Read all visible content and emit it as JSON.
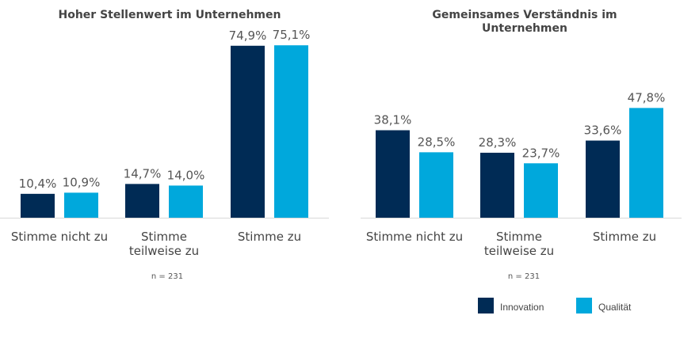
{
  "colors": {
    "innovation": "#002b55",
    "qualitaet": "#00a8dc"
  },
  "legend": {
    "innovation": "Innovation",
    "qualitaet": "Qualität"
  },
  "chart_data": [
    {
      "type": "bar",
      "title": "Hoher Stellenwert im Unternehmen",
      "categories": [
        "Stimme nicht zu",
        "Stimme\nteilweise zu",
        "Stimme zu"
      ],
      "series": [
        {
          "name": "Innovation",
          "values": [
            10.4,
            14.7,
            74.9
          ],
          "labels": [
            "10,4%",
            "14,7%",
            "74,9%"
          ]
        },
        {
          "name": "Qualität",
          "values": [
            10.9,
            14.0,
            75.1
          ],
          "labels": [
            "10,9%",
            "14,0%",
            "75,1%"
          ]
        }
      ],
      "ylim": [
        0,
        80
      ],
      "note": "n = 231"
    },
    {
      "type": "bar",
      "title": "Gemeinsames Verständnis im\nUnternehmen",
      "categories": [
        "Stimme nicht zu",
        "Stimme\nteilweise zu",
        "Stimme zu"
      ],
      "series": [
        {
          "name": "Innovation",
          "values": [
            38.1,
            28.3,
            33.6
          ],
          "labels": [
            "38,1%",
            "28,3%",
            "33,6%"
          ]
        },
        {
          "name": "Qualität",
          "values": [
            28.5,
            23.7,
            47.8
          ],
          "labels": [
            "28,5%",
            "23,7%",
            "47,8%"
          ]
        }
      ],
      "ylim": [
        0,
        80
      ],
      "note": "n = 231"
    }
  ]
}
